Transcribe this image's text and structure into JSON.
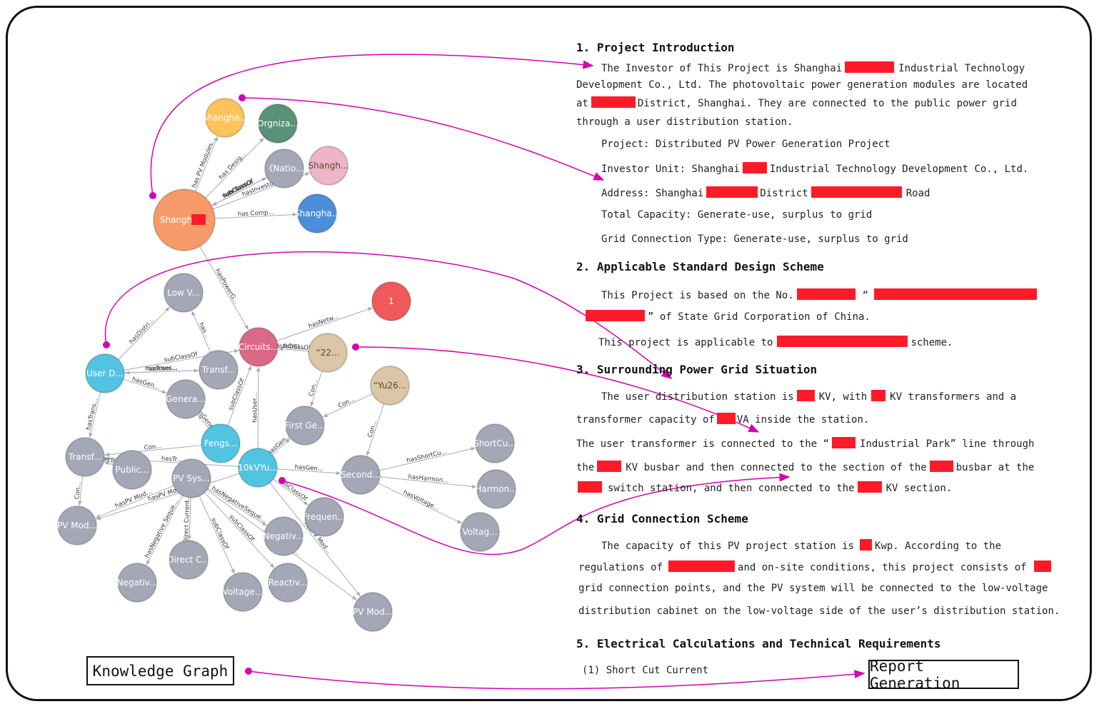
{
  "colors": {
    "accent_arrow": "#d400b4",
    "edge": "#a8aab6",
    "redact": "#ff1a2a",
    "node_gray": "#a4a8b6",
    "node_orange": "#f79a6a",
    "node_yellow": "#fcc45a",
    "node_green": "#5a9178",
    "node_pink": "#eeb4c8",
    "node_blue": "#4b8fdb",
    "node_cyan": "#52c4e2",
    "node_red": "#ee5a5a",
    "node_crimson": "#dc6888",
    "node_tan": "#dbc6a5"
  },
  "labels": {
    "knowledge_graph": "Knowledge Graph",
    "report_generation": "Report Generation"
  },
  "graph": {
    "nodes": [
      {
        "id": "shanghai_y",
        "label": "Shangha...",
        "color": "node_yellow"
      },
      {
        "id": "orgniza",
        "label": "Orgniza...",
        "color": "node_green"
      },
      {
        "id": "natio",
        "label": "《Natio...",
        "color": "node_gray"
      },
      {
        "id": "shanghai_p",
        "label": "Shangh...",
        "color": "node_pink",
        "dark": true
      },
      {
        "id": "shanghai_main",
        "label": "Shangha    ...",
        "color": "node_orange"
      },
      {
        "id": "shanghai_b",
        "label": "Shangha...",
        "color": "node_blue"
      },
      {
        "id": "lowv",
        "label": "Low V...",
        "color": "node_gray"
      },
      {
        "id": "n1",
        "label": "1",
        "color": "node_red"
      },
      {
        "id": "circuits",
        "label": "Circuits...",
        "color": "node_crimson"
      },
      {
        "id": "n22",
        "label": "“22...",
        "color": "node_tan",
        "dark": true
      },
      {
        "id": "userd",
        "label": "User D...",
        "color": "node_cyan"
      },
      {
        "id": "transf1",
        "label": "Transf...",
        "color": "node_gray"
      },
      {
        "id": "yu26",
        "label": "“Yu26...",
        "color": "node_tan",
        "dark": true
      },
      {
        "id": "genera",
        "label": "Genera...",
        "color": "node_gray"
      },
      {
        "id": "firstge",
        "label": "First Ge...",
        "color": "node_gray"
      },
      {
        "id": "fengs",
        "label": "Fengs...",
        "color": "node_cyan"
      },
      {
        "id": "shortcu",
        "label": "ShortCu...",
        "color": "node_gray"
      },
      {
        "id": "transf2",
        "label": "Transf...",
        "color": "node_gray"
      },
      {
        "id": "public",
        "label": "Public...",
        "color": "node_gray"
      },
      {
        "id": "pvsys",
        "label": "PV Sys...",
        "color": "node_gray"
      },
      {
        "id": "kv10",
        "label": "10kVYu...",
        "color": "node_cyan"
      },
      {
        "id": "second",
        "label": "Second...",
        "color": "node_gray"
      },
      {
        "id": "harmon",
        "label": "Harmon...",
        "color": "node_gray"
      },
      {
        "id": "pvmod1",
        "label": "PV Mod...",
        "color": "node_gray"
      },
      {
        "id": "frequen",
        "label": "Frequen...",
        "color": "node_gray"
      },
      {
        "id": "voltag1",
        "label": "Voltag...",
        "color": "node_gray"
      },
      {
        "id": "negativ2",
        "label": "Negativ...",
        "color": "node_gray"
      },
      {
        "id": "directc",
        "label": "Direct C...",
        "color": "node_gray"
      },
      {
        "id": "negativ1",
        "label": "Negativ...",
        "color": "node_gray"
      },
      {
        "id": "voltage2",
        "label": "Voltage...",
        "color": "node_gray"
      },
      {
        "id": "reactiv",
        "label": "Reactiv...",
        "color": "node_gray"
      },
      {
        "id": "pvmod2",
        "label": "PV Mod...",
        "color": "node_gray"
      }
    ],
    "edges": [
      {
        "from": "shanghai_main",
        "to": "shanghai_y",
        "label": "has PV Modules..."
      },
      {
        "from": "shanghai_main",
        "to": "orgniza",
        "label": "has Desig..."
      },
      {
        "from": "shanghai_main",
        "to": "natio",
        "label": "subClassOf"
      },
      {
        "from": "shanghai_main",
        "to": "natio",
        "label": "has Grid..."
      },
      {
        "from": "natio",
        "to": "shanghai_main",
        "label": "subClassOf"
      },
      {
        "from": "shanghai_main",
        "to": "shanghai_p",
        "label": "hasInvesto..."
      },
      {
        "from": "shanghai_main",
        "to": "shanghai_b",
        "label": "has Comp..."
      },
      {
        "from": "shanghai_main",
        "to": "circuits",
        "label": "hasPowerG..."
      },
      {
        "from": "userd",
        "to": "lowv",
        "label": "hasDistri..."
      },
      {
        "from": "circuits",
        "to": "n1",
        "label": "hasNetw..."
      },
      {
        "from": "n22",
        "to": "circuits",
        "label": "subClassOf"
      },
      {
        "from": "userd",
        "to": "circuits",
        "label": "subClassOf"
      },
      {
        "from": "n22",
        "to": "circuits",
        "label": "subCl..."
      },
      {
        "from": "userd",
        "to": "transf1",
        "label": "hasTrans..."
      },
      {
        "from": "transf1",
        "to": "userd",
        "label": "hasUser..."
      },
      {
        "from": "userd",
        "to": "genera",
        "label": "hasGen..."
      },
      {
        "from": "n22",
        "to": "firstge",
        "label": "Con..."
      },
      {
        "from": "yu26",
        "to": "firstge",
        "label": "Con..."
      },
      {
        "from": "yu26",
        "to": "second",
        "label": "Con..."
      },
      {
        "from": "userd",
        "to": "transf2",
        "label": "hasTrans..."
      },
      {
        "from": "fengs",
        "to": "transf2",
        "label": "Con..."
      },
      {
        "from": "fengs",
        "to": "genera",
        "label": "hasGene..."
      },
      {
        "from": "fengs",
        "to": "circuits",
        "label": "subClassOf"
      },
      {
        "from": "kv10",
        "to": "circuits",
        "label": "hasUser..."
      },
      {
        "from": "kv10",
        "to": "firstge",
        "label": "hasGen..."
      },
      {
        "from": "kv10",
        "to": "second",
        "label": "hasGen..."
      },
      {
        "from": "second",
        "to": "shortcu",
        "label": "hasShortCu..."
      },
      {
        "from": "second",
        "to": "harmon",
        "label": "hasHarmon..."
      },
      {
        "from": "second",
        "to": "voltag1",
        "label": "hasVoltage..."
      },
      {
        "from": "kv10",
        "to": "transf2",
        "label": "hasTr..."
      },
      {
        "from": "kv10",
        "to": "pvmod1",
        "label": "hasPV Mod..."
      },
      {
        "from": "pvsys",
        "to": "pvmod1",
        "label": "hasPV Mod..."
      },
      {
        "from": "pvsys",
        "to": "negativ1",
        "label": "hasNegative Seque..."
      },
      {
        "from": "pvsys",
        "to": "directc",
        "label": "Direct Current..."
      },
      {
        "from": "pvsys",
        "to": "voltage2",
        "label": "subClassOf"
      },
      {
        "from": "pvsys",
        "to": "reactiv",
        "label": "subClassOf"
      },
      {
        "from": "pvsys",
        "to": "negativ2",
        "label": "hasNegativeSeque..."
      },
      {
        "from": "kv10",
        "to": "pvmod2",
        "label": "hasPV Mod..."
      },
      {
        "from": "pvsys",
        "to": "pvmod2",
        "label": "hasPV Mod..."
      },
      {
        "from": "transf2",
        "to": "pvmod1",
        "label": "Con..."
      },
      {
        "from": "public",
        "to": "transf2",
        "label": "hasTr..."
      },
      {
        "from": "transf1",
        "to": "lowv",
        "label": "has..."
      },
      {
        "from": "kv10",
        "to": "frequen",
        "label": "subClassOf"
      }
    ]
  },
  "report": {
    "s1_title": "1. Project Introduction",
    "s1_p1a": "The Investor of This Project is Shanghai",
    "s1_p1b": "Industrial Technology",
    "s1_p2": "Development Co., Ltd. The photovoltaic power generation modules are located",
    "s1_p3a": "at",
    "s1_p3b": "District, Shanghai. They are connected to the public power grid",
    "s1_p4": "through a user distribution station.",
    "s1_project": "Project: Distributed PV Power Generation Project",
    "s1_investor_a": "Investor Unit: Shanghai",
    "s1_investor_b": "Industrial Technology Development Co., Ltd.",
    "s1_address_a": "Address: Shanghai",
    "s1_address_b": "District",
    "s1_address_c": "Road",
    "s1_capacity": "Total Capacity: Generate-use, surplus to grid",
    "s1_gridtype": "Grid Connection Type: Generate-use, surplus to grid",
    "s2_title": "2. Applicable Standard Design Scheme",
    "s2_p1a": "This Project is based on the No.",
    "s2_p1b": "“",
    "s2_p2": "” of State Grid Corporation of China.",
    "s2_p3a": "This project is applicable to",
    "s2_p3b": "scheme.",
    "s3_title": "3. Surrounding Power Grid Situation",
    "s3_p1a": "The user distribution station is",
    "s3_p1b": "KV, with",
    "s3_p1c": "KV transformers and a",
    "s3_p2a": "transformer capacity of",
    "s3_p2b": "VA inside the station.",
    "s3_p3a": "The user transformer is connected to the “",
    "s3_p3b": "Industrial Park” line through",
    "s3_p4a": "the",
    "s3_p4b": "KV busbar and then connected to the section of the",
    "s3_p4c": "busbar at the",
    "s3_p5a": "switch station, and then connected to the",
    "s3_p5b": "KV section.",
    "s4_title": "4. Grid Connection Scheme",
    "s4_p1a": "The capacity of this PV project station is",
    "s4_p1b": "Kwp. According to the",
    "s4_p2a": "regulations of",
    "s4_p2b": "and on-site conditions, this project consists of",
    "s4_p3": "grid connection points, and the PV system will be connected to the low-voltage",
    "s4_p4": "distribution cabinet on the low-voltage side of the user’s distribution station.",
    "s5_title": "5. Electrical Calculations and Technical Requirements",
    "s5_p1": "(1) Short Cut Current"
  }
}
